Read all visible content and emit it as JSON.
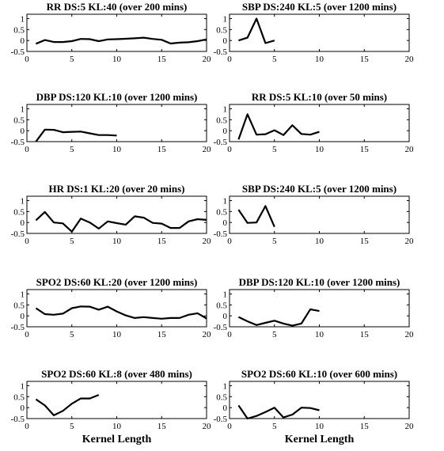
{
  "chart_data": [
    {
      "type": "line",
      "title": "RR DS:5 KL:40 (over 200 mins)",
      "xlabel": "",
      "xlim": [
        0,
        20
      ],
      "ylim": [
        -0.5,
        1.2
      ],
      "xticks": [
        0,
        5,
        10,
        15,
        20
      ],
      "yticks": [
        -0.5,
        0,
        0.5,
        1
      ],
      "x": [
        1,
        2,
        3,
        4,
        5,
        6,
        7,
        8,
        9,
        10,
        11,
        12,
        13,
        14,
        15,
        16,
        17,
        18,
        19,
        20
      ],
      "series": [
        {
          "values": [
            -0.15,
            0.02,
            -0.07,
            -0.07,
            -0.03,
            0.07,
            0.06,
            -0.03,
            0.05,
            0.06,
            0.08,
            0.1,
            0.13,
            0.07,
            0.03,
            -0.14,
            -0.1,
            -0.08,
            -0.03,
            0.05
          ]
        }
      ]
    },
    {
      "type": "line",
      "title": "SBP DS:240 KL:5 (over 1200 mins)",
      "xlabel": "",
      "xlim": [
        0,
        20
      ],
      "ylim": [
        -0.5,
        1.2
      ],
      "xticks": [
        0,
        5,
        10,
        15,
        20
      ],
      "yticks": [
        -0.5,
        0,
        0.5,
        1
      ],
      "x": [
        1,
        2,
        3,
        4,
        5
      ],
      "series": [
        {
          "values": [
            0.0,
            0.13,
            1.0,
            -0.12,
            0.0
          ]
        }
      ]
    },
    {
      "type": "line",
      "title": "DBP DS:120 KL:10 (over 1200 mins)",
      "xlabel": "",
      "xlim": [
        0,
        20
      ],
      "ylim": [
        -0.5,
        1.2
      ],
      "xticks": [
        0,
        5,
        10,
        15,
        20
      ],
      "yticks": [
        -0.5,
        0,
        0.5,
        1
      ],
      "x": [
        1,
        2,
        3,
        4,
        5,
        6,
        7,
        8,
        9,
        10
      ],
      "series": [
        {
          "values": [
            -0.5,
            0.05,
            0.04,
            -0.07,
            -0.05,
            -0.04,
            -0.12,
            -0.2,
            -0.2,
            -0.22
          ]
        }
      ]
    },
    {
      "type": "line",
      "title": "RR DS:5 KL:10 (over 50 mins)",
      "xlabel": "",
      "xlim": [
        0,
        20
      ],
      "ylim": [
        -0.5,
        1.2
      ],
      "xticks": [
        0,
        5,
        10,
        15,
        20
      ],
      "yticks": [
        -0.5,
        0,
        0.5,
        1
      ],
      "x": [
        1,
        2,
        3,
        4,
        5,
        6,
        7,
        8,
        9,
        10
      ],
      "series": [
        {
          "values": [
            -0.4,
            0.75,
            -0.18,
            -0.16,
            0.02,
            -0.2,
            0.25,
            -0.15,
            -0.18,
            -0.05
          ]
        }
      ]
    },
    {
      "type": "line",
      "title": "HR DS:1 KL:20 (over 20 mins)",
      "xlabel": "",
      "xlim": [
        0,
        20
      ],
      "ylim": [
        -0.5,
        1.2
      ],
      "xticks": [
        0,
        5,
        10,
        15,
        20
      ],
      "yticks": [
        -0.5,
        0,
        0.5,
        1
      ],
      "x": [
        1,
        2,
        3,
        4,
        5,
        6,
        7,
        8,
        9,
        10,
        11,
        12,
        13,
        14,
        15,
        16,
        17,
        18,
        19,
        20
      ],
      "series": [
        {
          "values": [
            0.1,
            0.48,
            0.0,
            -0.04,
            -0.42,
            0.18,
            0.0,
            -0.28,
            0.05,
            -0.03,
            -0.1,
            0.28,
            0.22,
            -0.02,
            -0.05,
            -0.25,
            -0.25,
            0.05,
            0.15,
            0.12
          ]
        }
      ]
    },
    {
      "type": "line",
      "title": "SBP DS:240 KL:5 (over 1200 mins)",
      "xlabel": "",
      "xlim": [
        0,
        20
      ],
      "ylim": [
        -0.5,
        1.2
      ],
      "xticks": [
        0,
        5,
        10,
        15,
        20
      ],
      "yticks": [
        -0.5,
        0,
        0.5,
        1
      ],
      "x": [
        1,
        2,
        3,
        4,
        5
      ],
      "series": [
        {
          "values": [
            0.58,
            -0.02,
            0.0,
            0.75,
            -0.2
          ]
        }
      ]
    },
    {
      "type": "line",
      "title": "SPO2 DS:60 KL:20 (over 1200 mins)",
      "xlabel": "",
      "xlim": [
        0,
        20
      ],
      "ylim": [
        -0.5,
        1.2
      ],
      "xticks": [
        0,
        5,
        10,
        15,
        20
      ],
      "yticks": [
        -0.5,
        0,
        0.5,
        1
      ],
      "x": [
        1,
        2,
        3,
        4,
        5,
        6,
        7,
        8,
        9,
        10,
        11,
        12,
        13,
        14,
        15,
        16,
        17,
        18,
        19,
        20
      ],
      "series": [
        {
          "values": [
            0.35,
            0.08,
            0.05,
            0.1,
            0.35,
            0.43,
            0.42,
            0.28,
            0.42,
            0.2,
            0.02,
            -0.1,
            -0.06,
            -0.1,
            -0.13,
            -0.1,
            -0.1,
            0.05,
            0.12,
            -0.12
          ]
        }
      ]
    },
    {
      "type": "line",
      "title": "DBP DS:120 KL:10 (over 1200 mins)",
      "xlabel": "",
      "xlim": [
        0,
        20
      ],
      "ylim": [
        -0.5,
        1.2
      ],
      "xticks": [
        0,
        5,
        10,
        15,
        20
      ],
      "yticks": [
        -0.5,
        0,
        0.5,
        1
      ],
      "x": [
        1,
        2,
        3,
        4,
        5,
        6,
        7,
        8,
        9,
        10
      ],
      "series": [
        {
          "values": [
            -0.05,
            -0.25,
            -0.42,
            -0.32,
            -0.22,
            -0.35,
            -0.45,
            -0.35,
            0.3,
            0.22
          ]
        }
      ]
    },
    {
      "type": "line",
      "title": "SPO2 DS:60 KL:8 (over 480 mins)",
      "xlabel": "Kernel Length",
      "xlim": [
        0,
        20
      ],
      "ylim": [
        -0.5,
        1.2
      ],
      "xticks": [
        0,
        5,
        10,
        15,
        20
      ],
      "yticks": [
        -0.5,
        0,
        0.5,
        1
      ],
      "x": [
        1,
        2,
        3,
        4,
        5,
        6,
        7,
        8
      ],
      "series": [
        {
          "values": [
            0.38,
            0.1,
            -0.35,
            -0.15,
            0.18,
            0.42,
            0.42,
            0.58
          ]
        }
      ]
    },
    {
      "type": "line",
      "title": "SPO2 DS:60 KL:10 (over 600 mins)",
      "xlabel": "Kernel Length",
      "xlim": [
        0,
        20
      ],
      "ylim": [
        -0.5,
        1.2
      ],
      "xticks": [
        0,
        5,
        10,
        15,
        20
      ],
      "yticks": [
        -0.5,
        0,
        0.5,
        1
      ],
      "x": [
        1,
        2,
        3,
        4,
        5,
        6,
        7,
        8,
        9,
        10
      ],
      "series": [
        {
          "values": [
            0.1,
            -0.5,
            -0.38,
            -0.2,
            0.0,
            -0.45,
            -0.32,
            0.0,
            -0.02,
            -0.12
          ]
        }
      ]
    }
  ]
}
